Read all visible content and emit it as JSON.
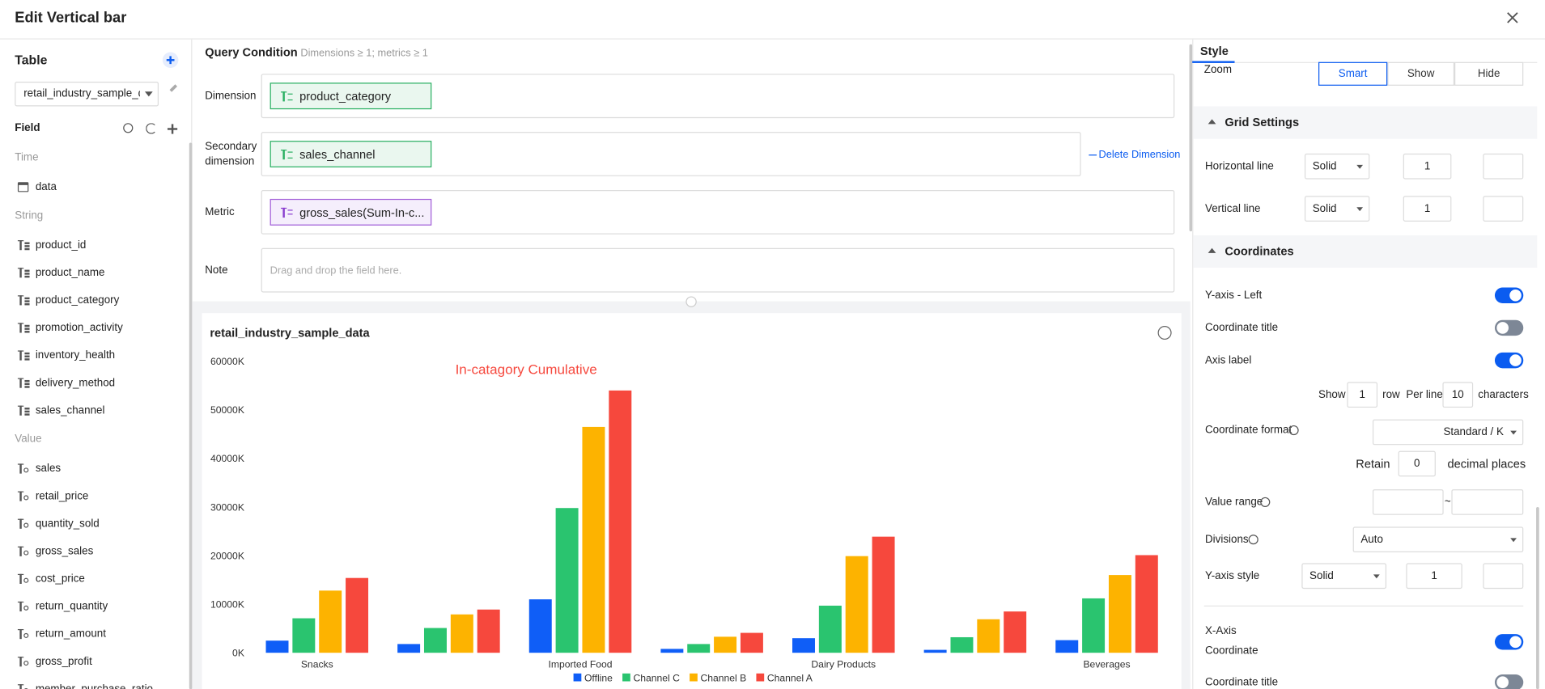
{
  "header": {
    "title": "Edit Vertical bar"
  },
  "sidebar": {
    "table_label": "Table",
    "table_select": "retail_industry_sample_dat",
    "field_label": "Field",
    "groups": [
      {
        "name": "Time",
        "fields": [
          "data"
        ]
      },
      {
        "name": "String",
        "fields": [
          "product_id",
          "product_name",
          "product_category",
          "promotion_activity",
          "inventory_health",
          "delivery_method",
          "sales_channel"
        ]
      },
      {
        "name": "Value",
        "fields": [
          "sales",
          "retail_price",
          "quantity_sold",
          "gross_sales",
          "cost_price",
          "return_quantity",
          "return_amount",
          "gross_profit",
          "member_purchase_ratio"
        ]
      }
    ]
  },
  "query": {
    "title": "Query Condition",
    "hint": "Dimensions ≥ 1; metrics ≥ 1",
    "rows": [
      {
        "label": "Dimension",
        "field": "product_category"
      },
      {
        "label": "Secondary dimension",
        "field": "sales_channel",
        "action": "Delete Dimension"
      },
      {
        "label": "Metric",
        "field": "gross_sales(Sum-In-c..."
      },
      {
        "label": "Note",
        "placeholder": "Drag and drop the field here."
      }
    ]
  },
  "chart_data": {
    "type": "bar",
    "title": "retail_industry_sample_data",
    "annotation": "In-catagory Cumulative",
    "categories": [
      "Snacks",
      null,
      "Imported Food",
      null,
      "Dairy Products",
      null,
      "Beverages"
    ],
    "series": [
      {
        "name": "Offline",
        "color": "#0f5ef7",
        "values": [
          2500000,
          1800000,
          11000000,
          800000,
          3000000,
          600000,
          2600000
        ]
      },
      {
        "name": "Channel C",
        "color": "#2ac46f",
        "values": [
          7100000,
          5100000,
          29800000,
          1800000,
          9700000,
          3200000,
          11200000
        ]
      },
      {
        "name": "Channel B",
        "color": "#fdb300",
        "values": [
          12800000,
          7900000,
          46500000,
          3300000,
          19900000,
          6900000,
          16000000
        ]
      },
      {
        "name": "Channel A",
        "color": "#f6483d",
        "values": [
          15400000,
          8900000,
          54000000,
          4100000,
          23900000,
          8500000,
          20100000
        ]
      }
    ],
    "ylim": [
      0,
      60000000
    ],
    "yticks": [
      {
        "value": 0,
        "label": "0K"
      },
      {
        "value": 10000000,
        "label": "10000K"
      },
      {
        "value": 20000000,
        "label": "20000K"
      },
      {
        "value": 30000000,
        "label": "30000K"
      },
      {
        "value": 40000000,
        "label": "40000K"
      },
      {
        "value": 50000000,
        "label": "50000K"
      },
      {
        "value": 60000000,
        "label": "60000K"
      }
    ]
  },
  "style_panel": {
    "tab": "Style",
    "zoom": {
      "label": "Zoom",
      "options": [
        "Smart",
        "Show",
        "Hide"
      ],
      "selected": 0
    },
    "grid_section": "Grid Settings",
    "lines": [
      {
        "label": "Horizontal line",
        "style": "Solid",
        "width": 1
      },
      {
        "label": "Vertical line",
        "style": "Solid",
        "width": 1
      }
    ],
    "coord_section": "Coordinates",
    "toggles": [
      {
        "label": "Y-axis - Left",
        "on": true
      },
      {
        "label": "Coordinate title",
        "on": false
      },
      {
        "label": "Axis label",
        "on": true
      }
    ],
    "axis_label_rows": {
      "show": "Show",
      "rows": 1,
      "row": "row",
      "per_line": "Per line",
      "chars": 10,
      "characters": "characters"
    },
    "coordinate_format": {
      "label": "Coordinate format",
      "value": "Standard / K"
    },
    "retain": {
      "label": "Retain",
      "value": 0,
      "unit": "decimal places"
    },
    "value_range": {
      "label": "Value range",
      "separator": "~"
    },
    "divisions": {
      "label": "Divisions",
      "value": "Auto"
    },
    "y_axis_style": {
      "label": "Y-axis style",
      "style": "Solid",
      "width": 1
    },
    "x_axis": {
      "label": "X-Axis",
      "sub": "Coordinate",
      "on": true
    },
    "x_coordinate_title": {
      "label": "Coordinate title",
      "on": false
    }
  }
}
